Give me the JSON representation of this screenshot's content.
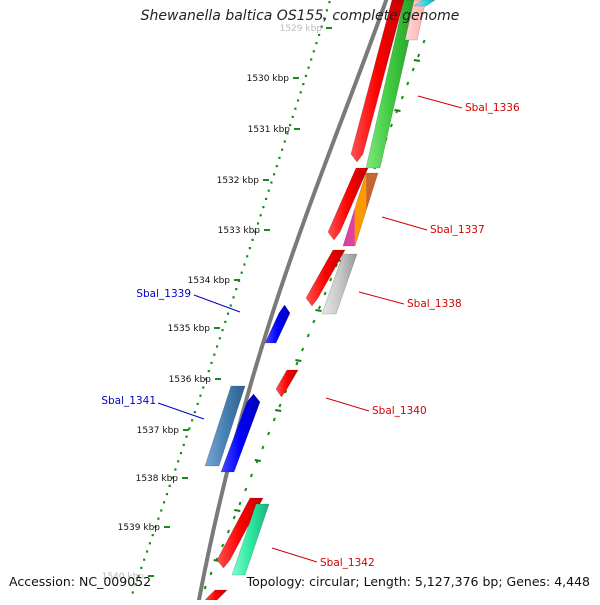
{
  "header": {
    "title": "Shewanella baltica OS155, complete genome"
  },
  "footer": {
    "accession": "Accession: NC_009052",
    "summary": "Topology: circular; Length: 5,127,376 bp; Genes: 4,448"
  },
  "colors": {
    "backbone": "#7a7a7a",
    "tick_dot": "#1a8a1a",
    "forward_label": "#d40000",
    "reverse_label": "#0000c8"
  },
  "ruler": {
    "ticks": [
      {
        "label": "1529 kbp",
        "faint": true
      },
      {
        "label": "1530 kbp"
      },
      {
        "label": "1531 kbp"
      },
      {
        "label": "1532 kbp"
      },
      {
        "label": "1533 kbp"
      },
      {
        "label": "1534 kbp"
      },
      {
        "label": "1535 kbp"
      },
      {
        "label": "1536 kbp"
      },
      {
        "label": "1537 kbp"
      },
      {
        "label": "1538 kbp"
      },
      {
        "label": "1539 kbp"
      },
      {
        "label": "1540 kbp",
        "faint": true
      }
    ]
  },
  "genes": [
    {
      "label": "Sbal_1336",
      "strand": "forward",
      "color": "red"
    },
    {
      "label": "Sbal_1337",
      "strand": "forward",
      "color": "red"
    },
    {
      "label": "Sbal_1338",
      "strand": "forward",
      "color": "red"
    },
    {
      "label": "Sbal_1339",
      "strand": "reverse",
      "color": "blue"
    },
    {
      "label": "Sbal_1340",
      "strand": "forward",
      "color": "red"
    },
    {
      "label": "Sbal_1341",
      "strand": "reverse",
      "color": "blue"
    },
    {
      "label": "Sbal_1342",
      "strand": "forward",
      "color": "red"
    }
  ]
}
